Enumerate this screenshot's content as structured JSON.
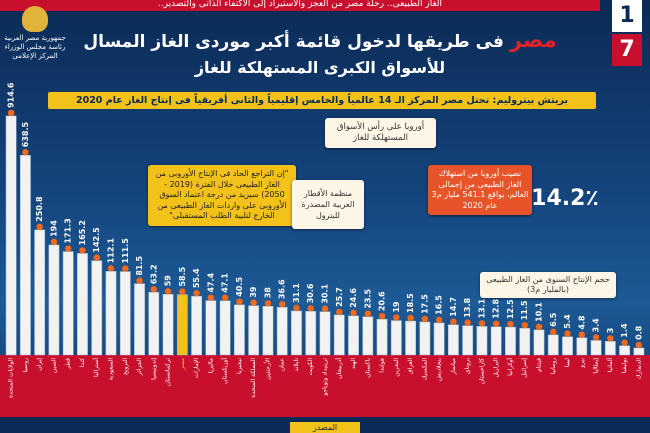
{
  "header": {
    "top_strip": "الغاز الطبيعى.. رحلة مصر من العجز والاستيراد إلى الاكتفاء الذاتى والتصدير..",
    "title_highlight": "مصر",
    "title": "فى طريقها لدخول قائمة أكبر موردى الغاز المسال",
    "subtitle": "للأسواق الكبرى المستهلكة للغاز",
    "source_line": "بريتش بيتروليم: تحتل مصر المركز الـ 14 عالمياً والخامس إقليمياً والثانى أفريقياً فى إنتاج الغاز عام 2020",
    "page_numbers": [
      "1",
      "7"
    ],
    "logo": [
      "جمهورية مصر العربية",
      "رئاسة مجلس الوزراء",
      "المركز الإعلامى"
    ]
  },
  "notes": {
    "europe": "أوروبا على رأس الأسواق المستهلكة للغاز",
    "quote": "\"إن التراجع الحاد فى الإنتاج الأوروبى من الغاز الطبيعى خلال الفترة (2019 - 2050) سيزيد من درجة اعتماد السوق الأوروبى على واردات الغاز الطبيعى من الخارج لتلبية الطلب المستقبلى\"",
    "quote_source": "منظمة الأقطار العربية المصدرة للبترول",
    "share_text": "نصيب أوروبا من استهلاك الغاز الطبيعى من إجمالى العالم، بواقع 541.1 مليار م3 عام 2020",
    "share_value": "14.2٪",
    "source": "المصدر"
  },
  "chart_data": {
    "type": "bar",
    "y_label": "حجم الإنتاج السنوى من الغاز الطبيعى (بالمليار م3)",
    "categories": [
      "الولايات المتحدة",
      "روسيا",
      "إيران",
      "الصين",
      "قطر",
      "كندا",
      "أستراليا",
      "السعودية",
      "النرويج",
      "الجزائر",
      "إندونيسيا",
      "تركمانستان",
      "مصر",
      "الإمارات",
      "ماليزيا",
      "أوزبكستان",
      "نيجيريا",
      "المملكة المتحدة",
      "الأرجنتين",
      "عمان",
      "تايلاند",
      "الكويت",
      "ترينيداد وتوباجو",
      "أذربيجان",
      "الهند",
      "باكستان",
      "هولندا",
      "البحرين",
      "العراق",
      "المكسيك",
      "بنجلاديش",
      "ميانمار",
      "بروناي",
      "كازاخستان",
      "البرازيل",
      "أوكرانيا",
      "إسرائيل",
      "فيتنام",
      "رومانيا",
      "ليبيا",
      "بيرو",
      "إيطاليا",
      "ألمانيا",
      "بوليفيا",
      "الدنمارك"
    ],
    "values": [
      914.6,
      638.5,
      250.8,
      194,
      171.3,
      165.2,
      142.5,
      112.1,
      111.5,
      81.5,
      63.2,
      59,
      58.5,
      55.4,
      47.4,
      47.1,
      40.5,
      39,
      38,
      36.6,
      31.1,
      30.6,
      30.1,
      25.7,
      24.6,
      23.5,
      20.6,
      19,
      18.5,
      17.5,
      16.5,
      14.7,
      13.8,
      13.1,
      12.8,
      12.5,
      11.5,
      10.1,
      6.5,
      5.4,
      4.8,
      3.4,
      3,
      1.4,
      0.8
    ],
    "highlight": "مصر",
    "color": "#f2f2f2",
    "highlight_color": "#f3c21a",
    "yscale": "sqrt",
    "ylim": [
      0,
      1000
    ]
  }
}
